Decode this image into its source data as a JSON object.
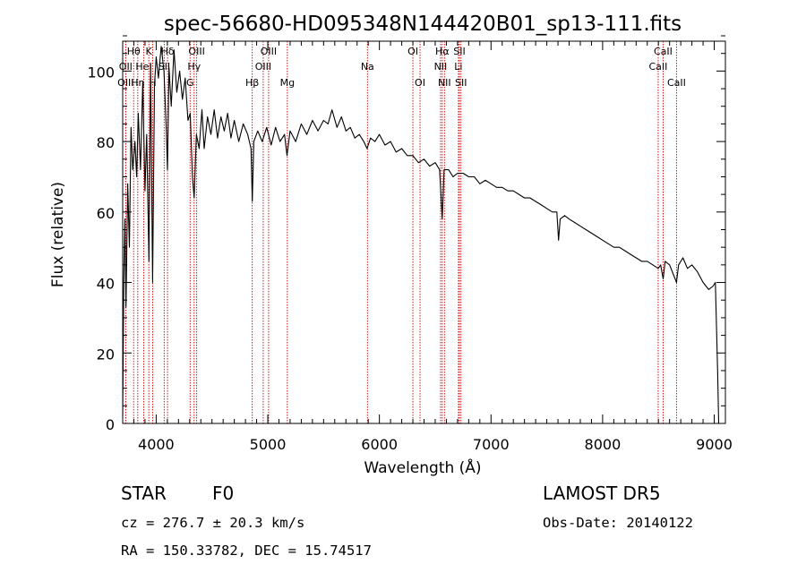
{
  "chart_data": {
    "type": "line",
    "title": "spec-56680-HD095348N144420B01_sp13-111.fits",
    "xlabel": "Wavelength (Å)",
    "ylabel": "Flux (relative)",
    "xlim": [
      3700,
      9100
    ],
    "ylim": [
      0,
      110
    ],
    "xticks": [
      {
        "value": 4000,
        "label": "4000"
      },
      {
        "value": 5000,
        "label": "5000"
      },
      {
        "value": 6000,
        "label": "6000"
      },
      {
        "value": 7000,
        "label": "7000"
      },
      {
        "value": 8000,
        "label": "8000"
      },
      {
        "value": 9000,
        "label": "9000"
      }
    ],
    "yticks": [
      {
        "value": 0,
        "label": "0"
      },
      {
        "value": 20,
        "label": "20"
      },
      {
        "value": 40,
        "label": "40"
      },
      {
        "value": 60,
        "label": "60"
      },
      {
        "value": 80,
        "label": "80"
      },
      {
        "value": 100,
        "label": "100"
      }
    ],
    "series": [
      {
        "points": [
          [
            3700,
            2
          ],
          [
            3710,
            40
          ],
          [
            3720,
            58
          ],
          [
            3730,
            33
          ],
          [
            3745,
            68
          ],
          [
            3760,
            50
          ],
          [
            3775,
            84
          ],
          [
            3790,
            72
          ],
          [
            3810,
            80
          ],
          [
            3825,
            70
          ],
          [
            3840,
            88
          ],
          [
            3860,
            72
          ],
          [
            3880,
            97
          ],
          [
            3900,
            66
          ],
          [
            3915,
            82
          ],
          [
            3935,
            46
          ],
          [
            3950,
            102
          ],
          [
            3968,
            40
          ],
          [
            3985,
            96
          ],
          [
            4000,
            104
          ],
          [
            4020,
            98
          ],
          [
            4045,
            107
          ],
          [
            4070,
            100
          ],
          [
            4090,
            84
          ],
          [
            4101,
            72
          ],
          [
            4115,
            101
          ],
          [
            4135,
            90
          ],
          [
            4160,
            106
          ],
          [
            4185,
            94
          ],
          [
            4210,
            100
          ],
          [
            4235,
            92
          ],
          [
            4260,
            98
          ],
          [
            4285,
            86
          ],
          [
            4305,
            88
          ],
          [
            4325,
            70
          ],
          [
            4340,
            64
          ],
          [
            4360,
            82
          ],
          [
            4385,
            78
          ],
          [
            4410,
            89
          ],
          [
            4430,
            78
          ],
          [
            4460,
            87
          ],
          [
            4490,
            82
          ],
          [
            4520,
            89
          ],
          [
            4550,
            81
          ],
          [
            4580,
            87
          ],
          [
            4610,
            83
          ],
          [
            4640,
            88
          ],
          [
            4670,
            81
          ],
          [
            4700,
            86
          ],
          [
            4740,
            80
          ],
          [
            4780,
            85
          ],
          [
            4820,
            82
          ],
          [
            4850,
            78
          ],
          [
            4861,
            63
          ],
          [
            4875,
            80
          ],
          [
            4910,
            83
          ],
          [
            4950,
            80
          ],
          [
            4990,
            84
          ],
          [
            5030,
            79
          ],
          [
            5070,
            84
          ],
          [
            5110,
            80
          ],
          [
            5150,
            82
          ],
          [
            5172,
            76
          ],
          [
            5200,
            83
          ],
          [
            5250,
            80
          ],
          [
            5300,
            85
          ],
          [
            5350,
            82
          ],
          [
            5400,
            86
          ],
          [
            5450,
            83
          ],
          [
            5500,
            86
          ],
          [
            5540,
            85
          ],
          [
            5575,
            89
          ],
          [
            5620,
            84
          ],
          [
            5660,
            87
          ],
          [
            5700,
            83
          ],
          [
            5740,
            84
          ],
          [
            5780,
            81
          ],
          [
            5820,
            82
          ],
          [
            5860,
            80
          ],
          [
            5890,
            78
          ],
          [
            5920,
            81
          ],
          [
            5960,
            80
          ],
          [
            6000,
            82
          ],
          [
            6050,
            79
          ],
          [
            6100,
            80
          ],
          [
            6150,
            77
          ],
          [
            6200,
            78
          ],
          [
            6250,
            76
          ],
          [
            6300,
            76
          ],
          [
            6350,
            74
          ],
          [
            6400,
            75
          ],
          [
            6450,
            73
          ],
          [
            6500,
            74
          ],
          [
            6540,
            72
          ],
          [
            6563,
            58
          ],
          [
            6580,
            72
          ],
          [
            6620,
            72
          ],
          [
            6660,
            70
          ],
          [
            6700,
            71
          ],
          [
            6750,
            71
          ],
          [
            6800,
            70
          ],
          [
            6850,
            70
          ],
          [
            6900,
            68
          ],
          [
            6950,
            69
          ],
          [
            7000,
            68
          ],
          [
            7050,
            67
          ],
          [
            7100,
            67
          ],
          [
            7150,
            66
          ],
          [
            7200,
            66
          ],
          [
            7250,
            65
          ],
          [
            7300,
            64
          ],
          [
            7350,
            64
          ],
          [
            7400,
            63
          ],
          [
            7450,
            62
          ],
          [
            7500,
            61
          ],
          [
            7550,
            60
          ],
          [
            7590,
            60
          ],
          [
            7605,
            52
          ],
          [
            7620,
            58
          ],
          [
            7660,
            59
          ],
          [
            7700,
            58
          ],
          [
            7750,
            57
          ],
          [
            7800,
            56
          ],
          [
            7850,
            55
          ],
          [
            7900,
            54
          ],
          [
            7950,
            53
          ],
          [
            8000,
            52
          ],
          [
            8050,
            51
          ],
          [
            8100,
            50
          ],
          [
            8150,
            50
          ],
          [
            8200,
            49
          ],
          [
            8250,
            48
          ],
          [
            8300,
            47
          ],
          [
            8350,
            46
          ],
          [
            8400,
            46
          ],
          [
            8450,
            45
          ],
          [
            8498,
            44
          ],
          [
            8520,
            45
          ],
          [
            8542,
            41
          ],
          [
            8560,
            46
          ],
          [
            8600,
            45
          ],
          [
            8662,
            40
          ],
          [
            8680,
            45
          ],
          [
            8720,
            47
          ],
          [
            8760,
            44
          ],
          [
            8800,
            45
          ],
          [
            8850,
            43
          ],
          [
            8900,
            40
          ],
          [
            8950,
            38
          ],
          [
            8990,
            39
          ],
          [
            9010,
            40
          ],
          [
            9030,
            15
          ],
          [
            9040,
            0
          ]
        ]
      }
    ],
    "spectral_lines": [
      {
        "name": "Hθ",
        "wavelength": 3798,
        "row": 0
      },
      {
        "name": "K",
        "wavelength": 3934,
        "row": 0
      },
      {
        "name": "Hδ",
        "wavelength": 4102,
        "row": 0
      },
      {
        "name": "OIII",
        "wavelength": 4363,
        "row": 0
      },
      {
        "name": "OIII",
        "wavelength": 5007,
        "row": 0
      },
      {
        "name": "OI",
        "wavelength": 6300,
        "row": 0
      },
      {
        "name": "Hα",
        "wavelength": 6563,
        "row": 0
      },
      {
        "name": "SII",
        "wavelength": 6717,
        "row": 0
      },
      {
        "name": "CaII",
        "wavelength": 8542,
        "row": 0
      },
      {
        "name": "OII",
        "wavelength": 3727,
        "row": 1
      },
      {
        "name": "HeI",
        "wavelength": 3889,
        "row": 1
      },
      {
        "name": "SII",
        "wavelength": 4072,
        "row": 1
      },
      {
        "name": "Hγ",
        "wavelength": 4340,
        "row": 1
      },
      {
        "name": "OIII",
        "wavelength": 4959,
        "row": 1
      },
      {
        "name": "Na",
        "wavelength": 5893,
        "row": 1
      },
      {
        "name": "NII",
        "wavelength": 6548,
        "row": 1
      },
      {
        "name": "Li",
        "wavelength": 6708,
        "row": 1
      },
      {
        "name": "CaII",
        "wavelength": 8498,
        "row": 1
      },
      {
        "name": "OIII",
        "wavelength": 3727,
        "row": 2
      },
      {
        "name": "Hη",
        "wavelength": 3835,
        "row": 2
      },
      {
        "name": "H",
        "wavelength": 3969,
        "row": 2
      },
      {
        "name": "G",
        "wavelength": 4304,
        "row": 2
      },
      {
        "name": "Hβ",
        "wavelength": 4861,
        "row": 2
      },
      {
        "name": "Mg",
        "wavelength": 5175,
        "row": 2
      },
      {
        "name": "OI",
        "wavelength": 6364,
        "row": 2
      },
      {
        "name": "NII",
        "wavelength": 6583,
        "row": 2
      },
      {
        "name": "SII",
        "wavelength": 6731,
        "row": 2
      },
      {
        "name": "CaII",
        "wavelength": 8662,
        "row": 2
      }
    ],
    "line_marker_color": "#cc0000",
    "spectrum_color": "#000000"
  },
  "footer": {
    "class_label": "STAR",
    "subclass": "F0",
    "survey": "LAMOST DR5",
    "cz_text": "cz = 276.7 ± 20.3 km/s",
    "obs_date_text": "Obs-Date: 20140122",
    "radec_text": "RA = 150.33782, DEC =  15.74517"
  }
}
